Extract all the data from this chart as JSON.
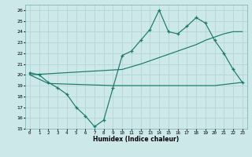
{
  "xlabel": "Humidex (Indice chaleur)",
  "xlim": [
    -0.5,
    23.5
  ],
  "ylim": [
    15,
    26.5
  ],
  "yticks": [
    15,
    16,
    17,
    18,
    19,
    20,
    21,
    22,
    23,
    24,
    25,
    26
  ],
  "xticks": [
    0,
    1,
    2,
    3,
    4,
    5,
    6,
    7,
    8,
    9,
    10,
    11,
    12,
    13,
    14,
    15,
    16,
    17,
    18,
    19,
    20,
    21,
    22,
    23
  ],
  "bg_color": "#cce8e8",
  "line_color": "#1a7a6a",
  "grid_color": "#b8d8d8",
  "line1_x": [
    0,
    1,
    2,
    3,
    4,
    5,
    6,
    7,
    8,
    9,
    10,
    11,
    12,
    13,
    14,
    15,
    16,
    17,
    18,
    19,
    20,
    21,
    22,
    23
  ],
  "line1_y": [
    20.2,
    20.0,
    19.3,
    18.8,
    18.2,
    17.0,
    16.2,
    15.2,
    15.8,
    18.8,
    21.8,
    22.2,
    23.2,
    24.2,
    26.0,
    24.0,
    23.8,
    24.5,
    25.3,
    24.8,
    23.2,
    22.0,
    20.5,
    19.3
  ],
  "line2_x": [
    0,
    10,
    12,
    14,
    16,
    18,
    19,
    20,
    21,
    22,
    23
  ],
  "line2_y": [
    20.0,
    20.5,
    21.0,
    21.6,
    22.2,
    22.8,
    23.2,
    23.5,
    23.8,
    24.0,
    24.0
  ],
  "line3_x": [
    0,
    2,
    9,
    14,
    19,
    20,
    23
  ],
  "line3_y": [
    20.0,
    19.2,
    19.0,
    19.0,
    19.0,
    19.0,
    19.3
  ]
}
